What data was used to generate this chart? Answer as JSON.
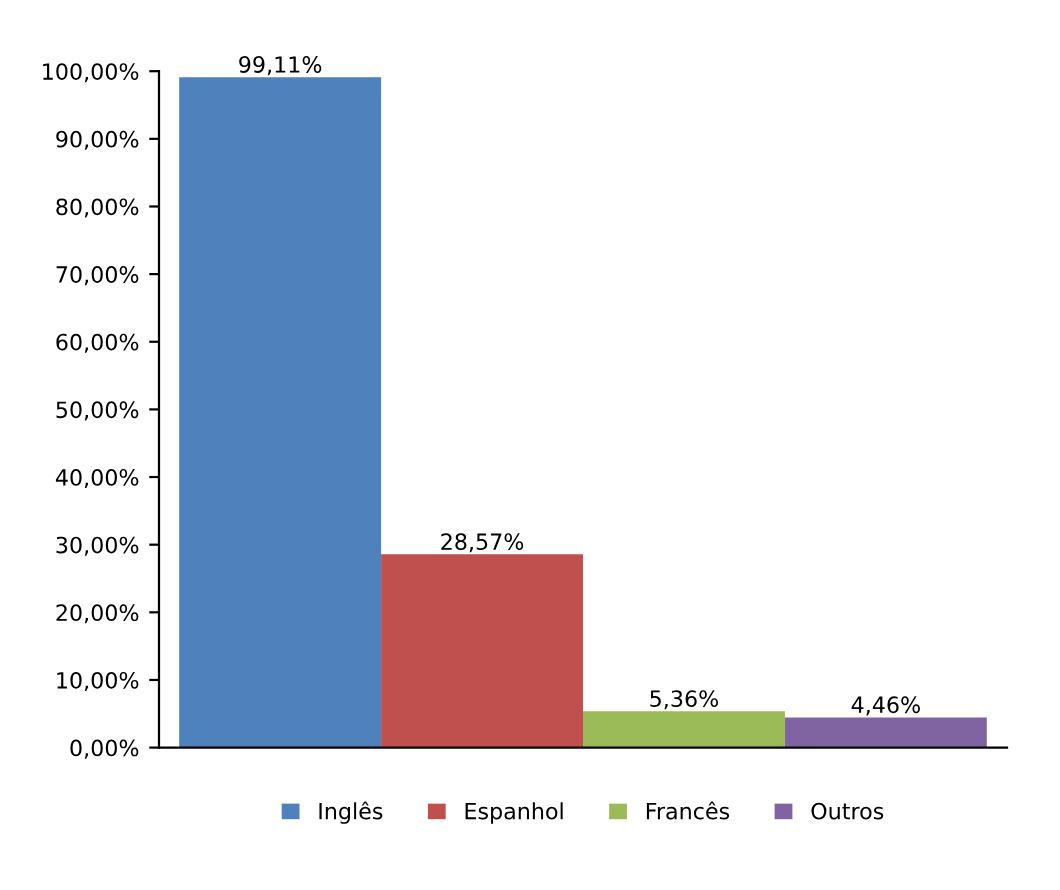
{
  "chart_data": {
    "type": "bar",
    "categories": [
      null,
      null,
      null,
      null
    ],
    "series": [
      {
        "name": "Inglês",
        "color": "#4f81bd",
        "values": [
          99.11,
          null,
          null,
          null
        ],
        "value_labels": [
          "99,11%",
          null,
          null,
          null
        ]
      },
      {
        "name": "Espanhol",
        "color": "#c0504d",
        "values": [
          null,
          28.57,
          null,
          null
        ],
        "value_labels": [
          null,
          "28,57%",
          null,
          null
        ]
      },
      {
        "name": "Francês",
        "color": "#9bbb59",
        "values": [
          null,
          null,
          5.36,
          null
        ],
        "value_labels": [
          null,
          null,
          "5,36%",
          null
        ]
      },
      {
        "name": "Outros",
        "color": "#8064a2",
        "values": [
          null,
          null,
          null,
          4.46
        ],
        "value_labels": [
          null,
          null,
          null,
          "4,46%"
        ]
      }
    ],
    "ylim": [
      0,
      100
    ],
    "yticks": [
      {
        "value": 0,
        "label": "0,00%"
      },
      {
        "value": 10,
        "label": "10,00%"
      },
      {
        "value": 20,
        "label": "20,00%"
      },
      {
        "value": 30,
        "label": "30,00%"
      },
      {
        "value": 40,
        "label": "40,00%"
      },
      {
        "value": 50,
        "label": "50,00%"
      },
      {
        "value": 60,
        "label": "60,00%"
      },
      {
        "value": 70,
        "label": "70,00%"
      },
      {
        "value": 80,
        "label": "80,00%"
      },
      {
        "value": 90,
        "label": "90,00%"
      },
      {
        "value": 100,
        "label": "100,00%"
      }
    ],
    "legend": "bottom"
  }
}
